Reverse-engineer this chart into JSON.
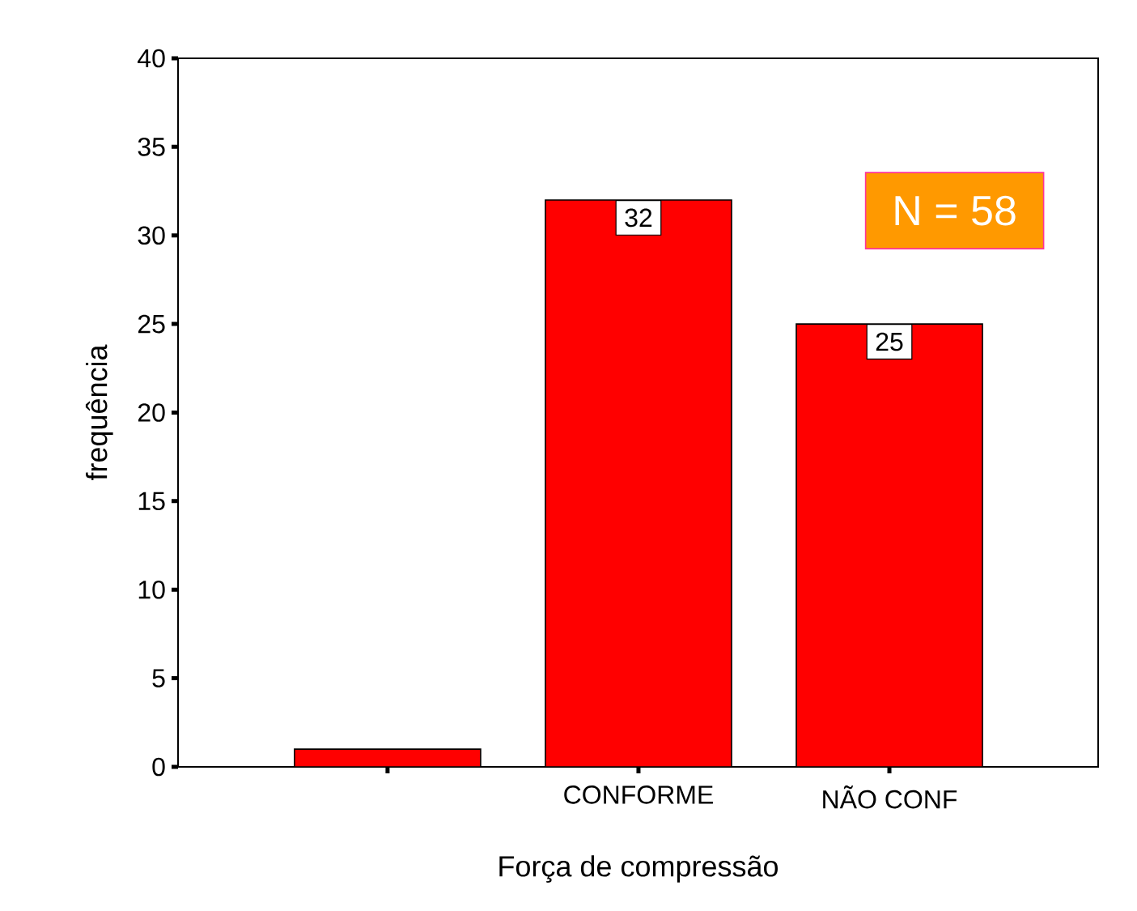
{
  "chart_data": {
    "type": "bar",
    "xlabel": "Força de compressão",
    "ylabel": "frequência",
    "categories": [
      null,
      "CONFORME",
      "NÃO CONF"
    ],
    "values": [
      1,
      32,
      25
    ],
    "color": "#ff0000",
    "value_labels": [
      null,
      "32",
      "25"
    ],
    "ylim": [
      0,
      40
    ],
    "yticks": [
      0,
      5,
      10,
      15,
      20,
      25,
      30,
      35,
      40
    ],
    "annotations": [
      "N = 58"
    ]
  }
}
